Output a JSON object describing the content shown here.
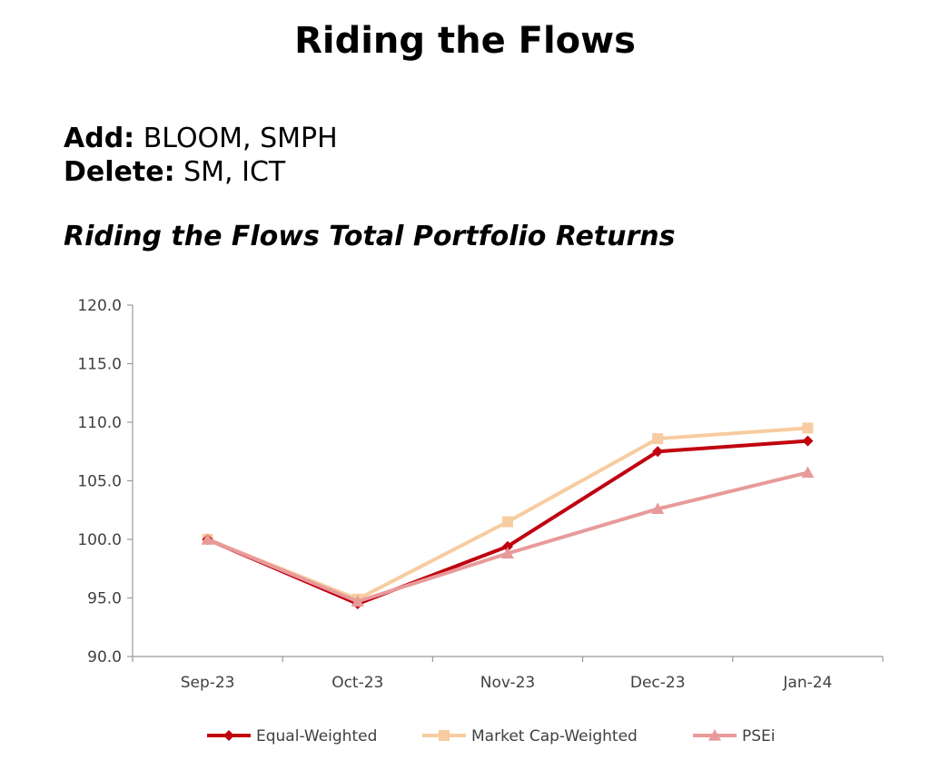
{
  "page": {
    "title": "Riding the Flows",
    "add_label": "Add:",
    "add_value": "BLOOM, SMPH",
    "delete_label": "Delete:",
    "delete_value": "SM, ICT"
  },
  "chart_data": {
    "type": "line",
    "title": "Riding the Flows Total Portfolio Returns",
    "xlabel": "",
    "ylabel": "",
    "categories": [
      "Sep-23",
      "Oct-23",
      "Nov-23",
      "Dec-23",
      "Jan-24"
    ],
    "ylim": [
      90,
      120
    ],
    "yticks": [
      "90.0",
      "95.0",
      "100.0",
      "105.0",
      "110.0",
      "115.0",
      "120.0"
    ],
    "grid": false,
    "legend_position": "bottom",
    "series": [
      {
        "name": "Equal-Weighted",
        "values": [
          100.0,
          94.5,
          99.4,
          107.5,
          108.4
        ],
        "color": "#c0000f",
        "marker": "diamond"
      },
      {
        "name": "Market Cap-Weighted",
        "values": [
          100.0,
          94.9,
          101.5,
          108.6,
          109.5
        ],
        "color": "#f7cca0",
        "marker": "square"
      },
      {
        "name": "PSEi",
        "values": [
          100.0,
          94.7,
          98.8,
          102.6,
          105.7
        ],
        "color": "#e89a9a",
        "marker": "triangle"
      }
    ]
  }
}
